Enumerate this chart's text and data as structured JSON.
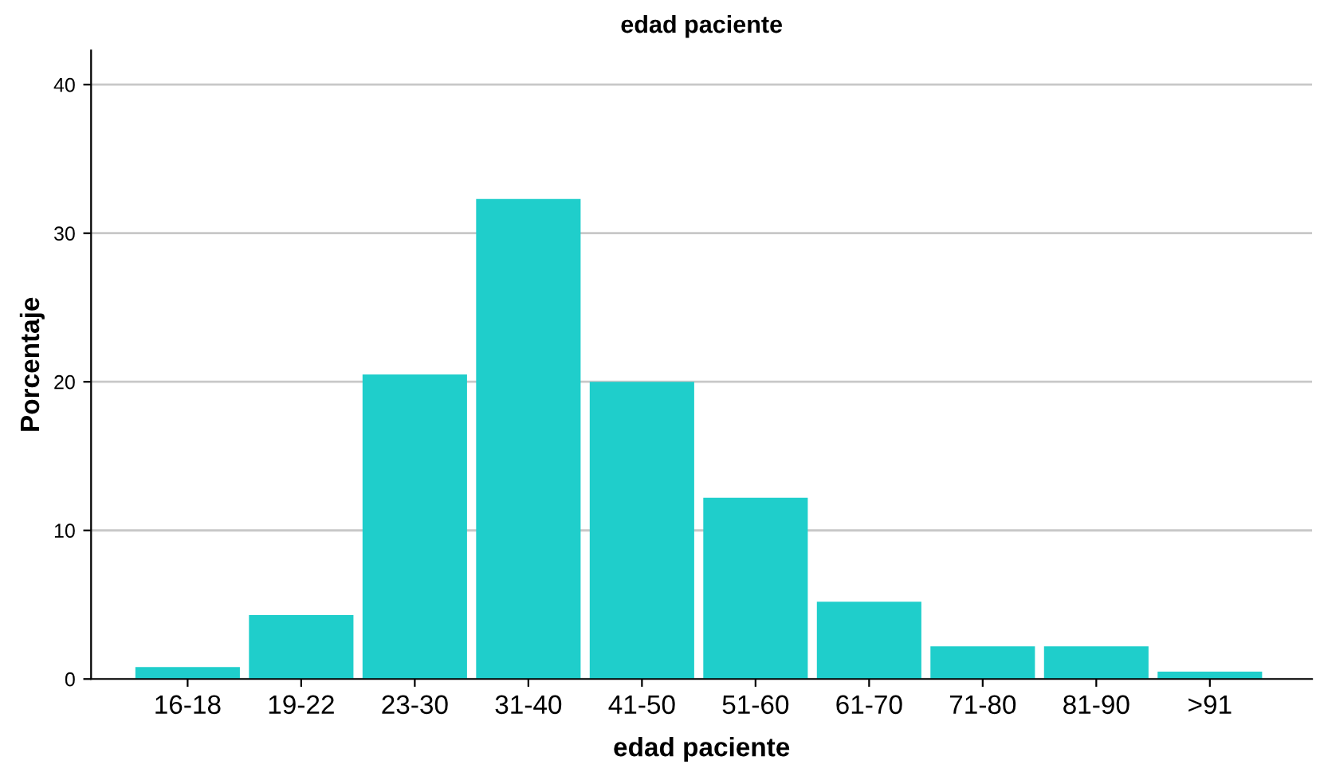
{
  "chart_data": {
    "type": "bar",
    "title": "edad paciente",
    "xlabel": "edad paciente",
    "ylabel": "Porcentaje",
    "categories": [
      "16-18",
      "19-22",
      "23-30",
      "31-40",
      "41-50",
      "51-60",
      "61-70",
      "71-80",
      "81-90",
      ">91"
    ],
    "values": [
      0.8,
      4.3,
      20.5,
      32.3,
      20.0,
      12.2,
      5.2,
      2.2,
      2.2,
      0.5
    ],
    "color": "#1fcecb",
    "ylim": [
      0,
      42.3
    ],
    "yticks": [
      0,
      10,
      20,
      30,
      40
    ],
    "grid": "y"
  }
}
